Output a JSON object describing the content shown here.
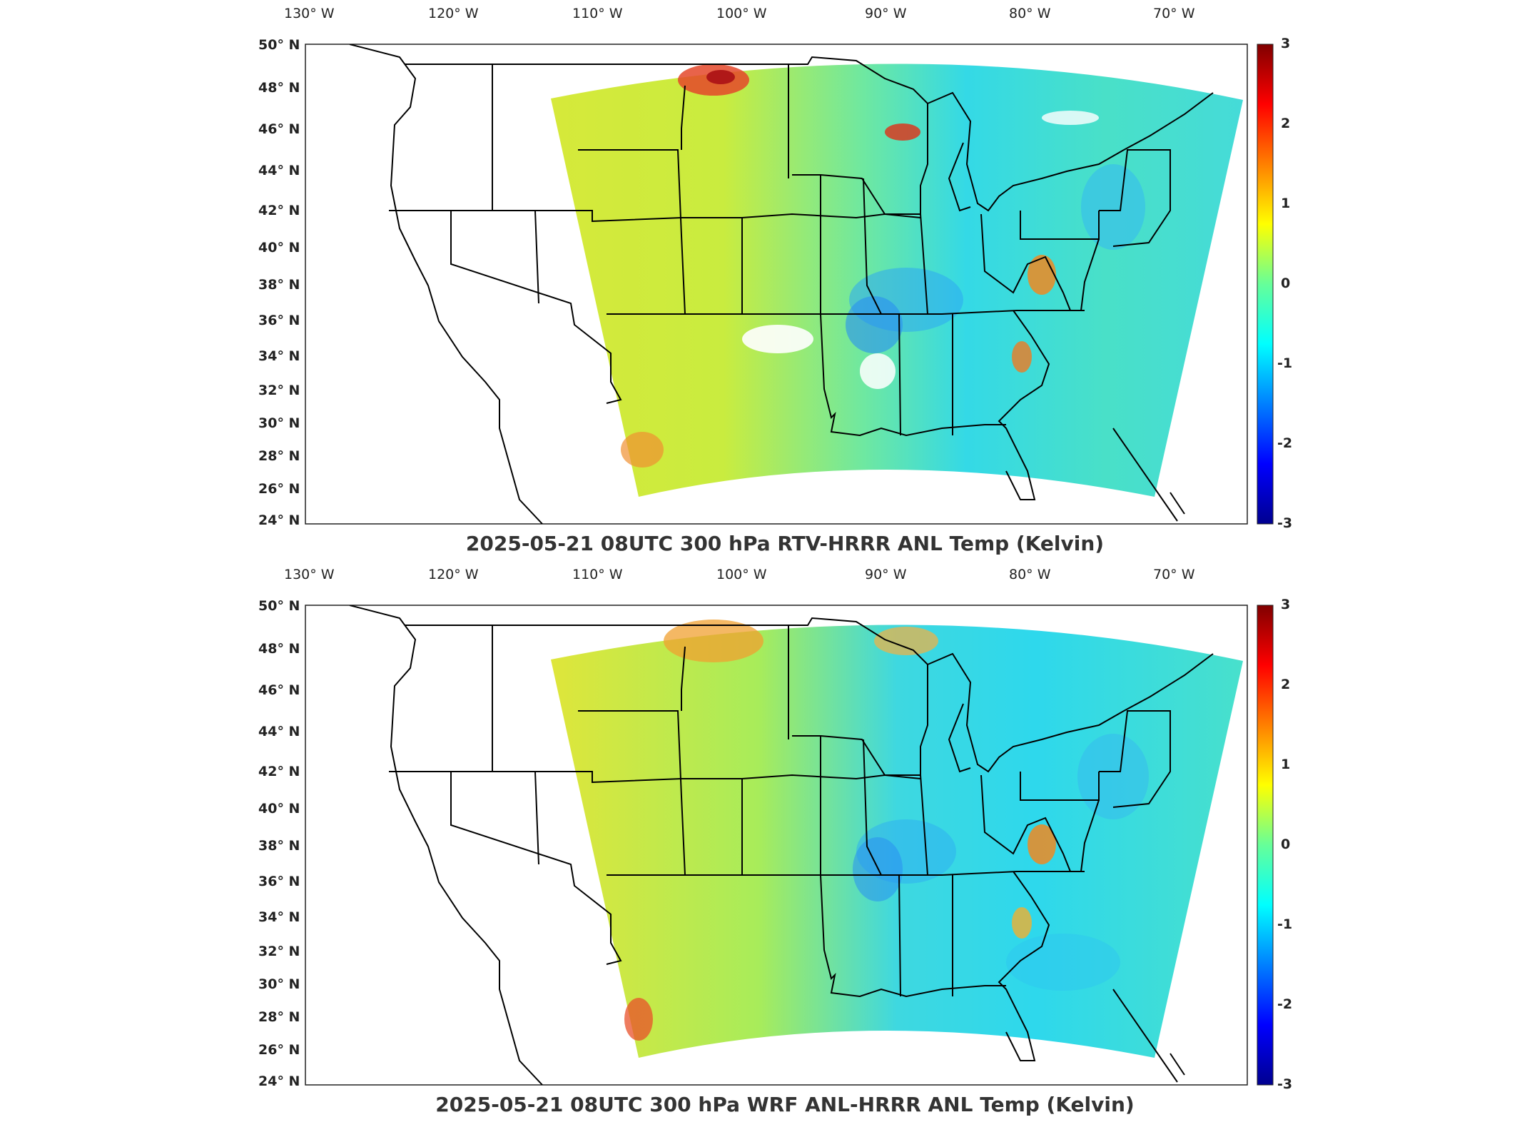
{
  "maps": [
    {
      "title": "2025-05-21 08UTC 300 hPa RTV-HRRR ANL Temp (Kelvin)",
      "lon_labels": [
        "130° W",
        "120° W",
        "110° W",
        "100° W",
        "90° W",
        "80° W",
        "70° W"
      ],
      "lat_labels": [
        "50° N",
        "48° N",
        "46° N",
        "44° N",
        "42° N",
        "40° N",
        "38° N",
        "36° N",
        "34° N",
        "32° N",
        "30° N",
        "28° N",
        "26° N",
        "24° N"
      ],
      "colorbar": {
        "min": -3,
        "max": 3,
        "ticks": [
          "3",
          "2",
          "1",
          "0",
          "-1",
          "-2",
          "-3"
        ]
      }
    },
    {
      "title": "2025-05-21 08UTC 300 hPa WRF ANL-HRRR ANL Temp (Kelvin)",
      "lon_labels": [
        "130° W",
        "120° W",
        "110° W",
        "100° W",
        "90° W",
        "80° W",
        "70° W"
      ],
      "lat_labels": [
        "50° N",
        "48° N",
        "46° N",
        "44° N",
        "42° N",
        "40° N",
        "38° N",
        "36° N",
        "34° N",
        "32° N",
        "30° N",
        "28° N",
        "26° N",
        "24° N"
      ],
      "colorbar": {
        "min": -3,
        "max": 3,
        "ticks": [
          "3",
          "2",
          "1",
          "0",
          "-1",
          "-2",
          "-3"
        ]
      }
    }
  ],
  "colormap": "jet"
}
